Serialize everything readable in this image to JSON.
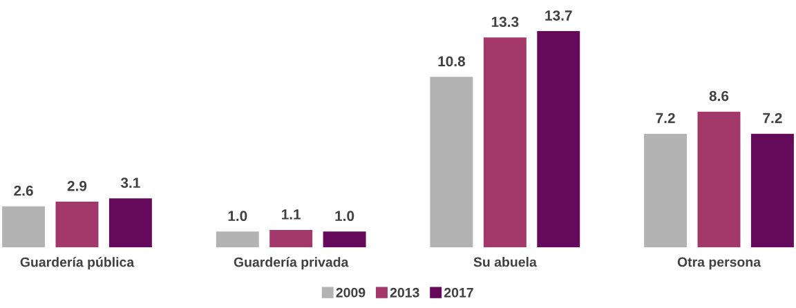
{
  "chart_data": {
    "type": "bar",
    "categories": [
      "Guardería pública",
      "Guardería privada",
      "Su abuela",
      "Otra persona"
    ],
    "series": [
      {
        "name": "2009",
        "color": "#b3b3b3",
        "values": [
          2.6,
          1.0,
          10.8,
          7.2
        ],
        "value_labels": [
          "2.6",
          "1.0",
          "10.8",
          "7.2"
        ]
      },
      {
        "name": "2013",
        "color": "#a3386b",
        "values": [
          2.9,
          1.1,
          13.3,
          8.6
        ],
        "value_labels": [
          "2.9",
          "1.1",
          "13.3",
          "8.6"
        ]
      },
      {
        "name": "2017",
        "color": "#650a5a",
        "values": [
          3.1,
          1.0,
          13.7,
          7.2
        ],
        "value_labels": [
          "3.1",
          "1.0",
          "13.7",
          "7.2"
        ]
      }
    ],
    "legend": "bottom",
    "grid": false
  }
}
